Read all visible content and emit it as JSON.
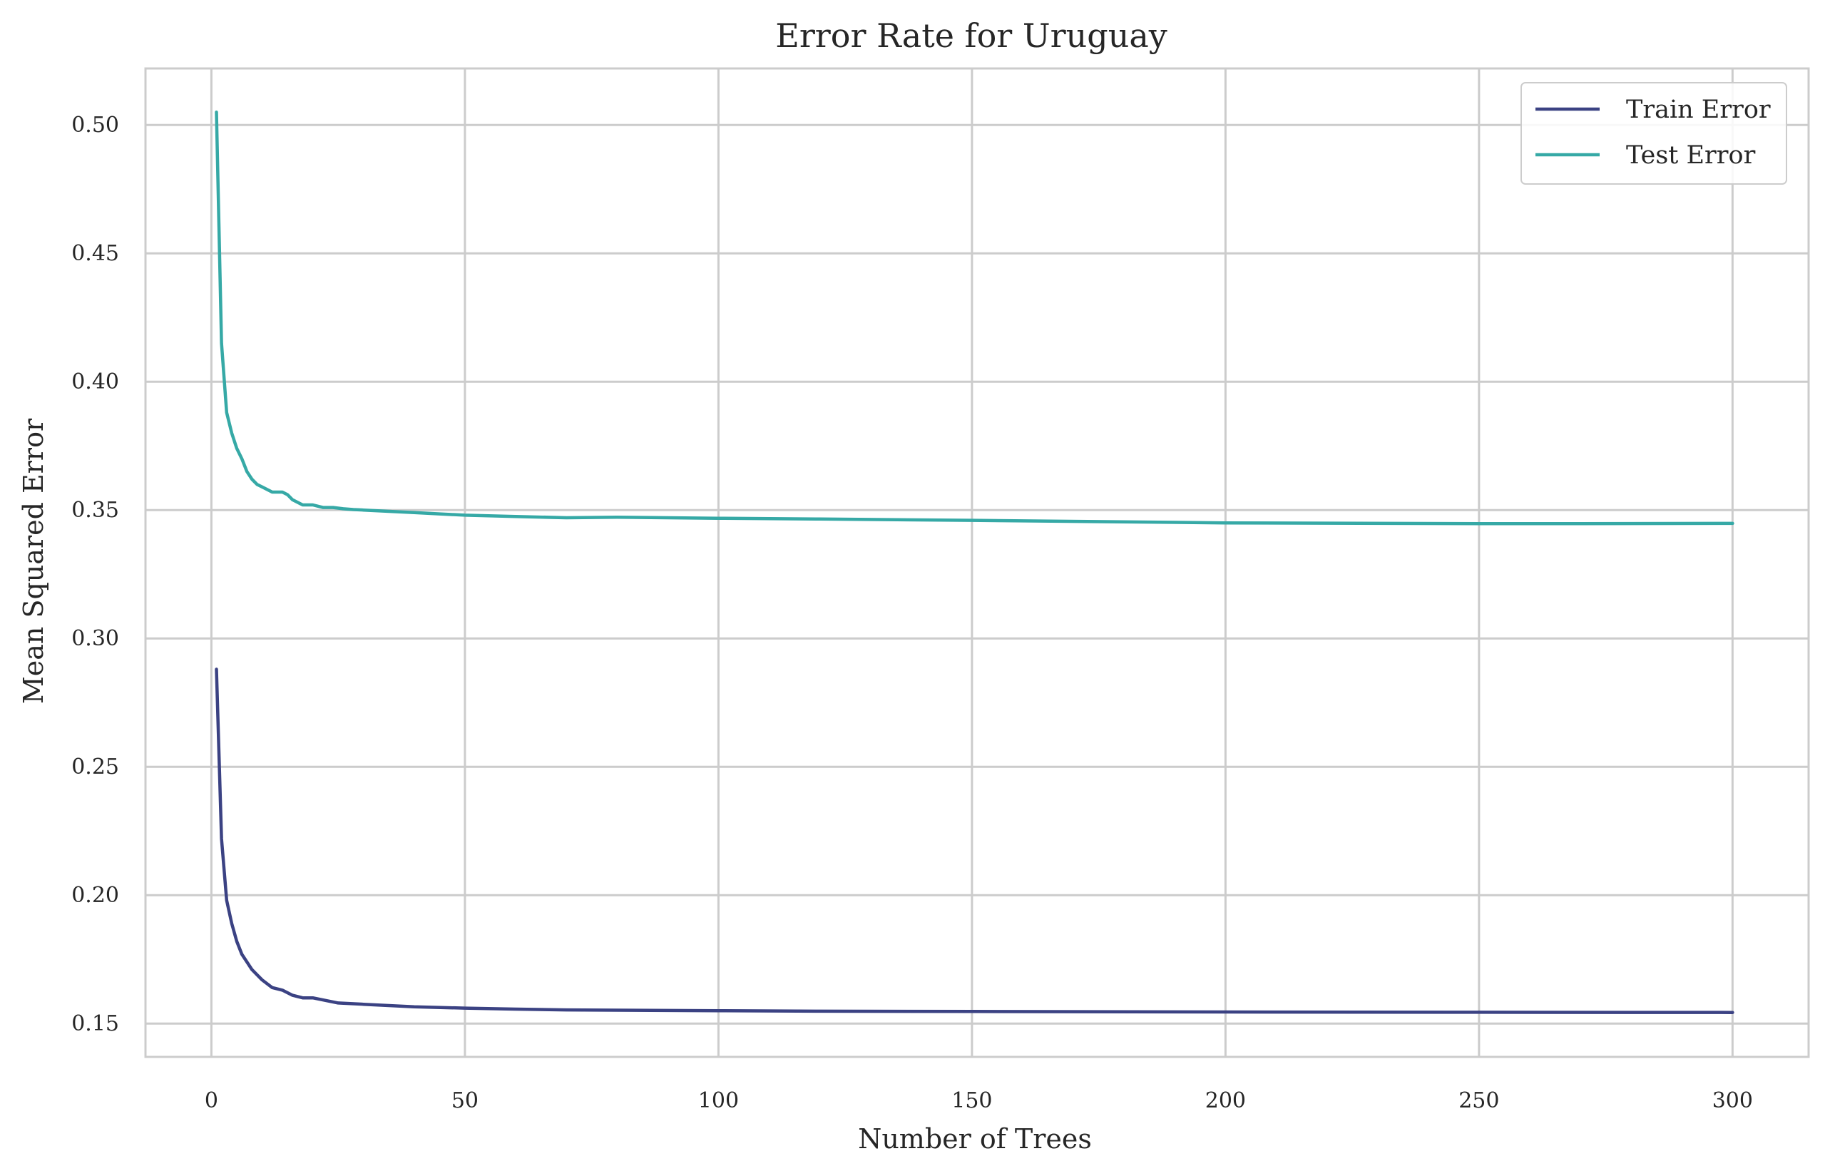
{
  "chart_data": {
    "type": "line",
    "title": "Error Rate for Uruguay",
    "xlabel": "Number of Trees",
    "ylabel": "Mean Squared Error",
    "xlim": [
      -13,
      315
    ],
    "ylim": [
      0.137,
      0.522
    ],
    "xticks": [
      0,
      50,
      100,
      150,
      200,
      250,
      300
    ],
    "xtick_labels": [
      "0",
      "50",
      "100",
      "150",
      "200",
      "250",
      "300"
    ],
    "yticks": [
      0.15,
      0.2,
      0.25,
      0.3,
      0.35,
      0.4,
      0.45,
      0.5
    ],
    "ytick_labels": [
      "0.15",
      "0.20",
      "0.25",
      "0.30",
      "0.35",
      "0.40",
      "0.45",
      "0.50"
    ],
    "grid": true,
    "legend_position": "top-right",
    "series": [
      {
        "name": "Train Error",
        "color": "#3b4283",
        "x": [
          1,
          2,
          3,
          4,
          5,
          6,
          7,
          8,
          9,
          10,
          12,
          14,
          16,
          18,
          20,
          25,
          30,
          35,
          40,
          50,
          60,
          70,
          80,
          100,
          120,
          150,
          200,
          250,
          300
        ],
        "y": [
          0.288,
          0.222,
          0.198,
          0.189,
          0.182,
          0.177,
          0.174,
          0.171,
          0.169,
          0.167,
          0.164,
          0.163,
          0.161,
          0.16,
          0.16,
          0.158,
          0.1575,
          0.157,
          0.1565,
          0.156,
          0.1556,
          0.1553,
          0.1552,
          0.155,
          0.1548,
          0.1547,
          0.1545,
          0.1544,
          0.1543
        ]
      },
      {
        "name": "Test Error",
        "color": "#36a9a6",
        "x": [
          1,
          2,
          3,
          4,
          5,
          6,
          7,
          8,
          9,
          10,
          12,
          14,
          15,
          16,
          18,
          20,
          22,
          24,
          26,
          28,
          30,
          35,
          40,
          45,
          50,
          60,
          70,
          80,
          90,
          100,
          120,
          150,
          200,
          250,
          270,
          300
        ],
        "y": [
          0.505,
          0.415,
          0.388,
          0.38,
          0.374,
          0.37,
          0.365,
          0.362,
          0.36,
          0.359,
          0.357,
          0.357,
          0.356,
          0.354,
          0.352,
          0.352,
          0.351,
          0.351,
          0.3505,
          0.3502,
          0.35,
          0.3495,
          0.349,
          0.3485,
          0.348,
          0.3475,
          0.347,
          0.3472,
          0.347,
          0.3468,
          0.3465,
          0.346,
          0.345,
          0.3447,
          0.3447,
          0.3448
        ]
      }
    ]
  }
}
